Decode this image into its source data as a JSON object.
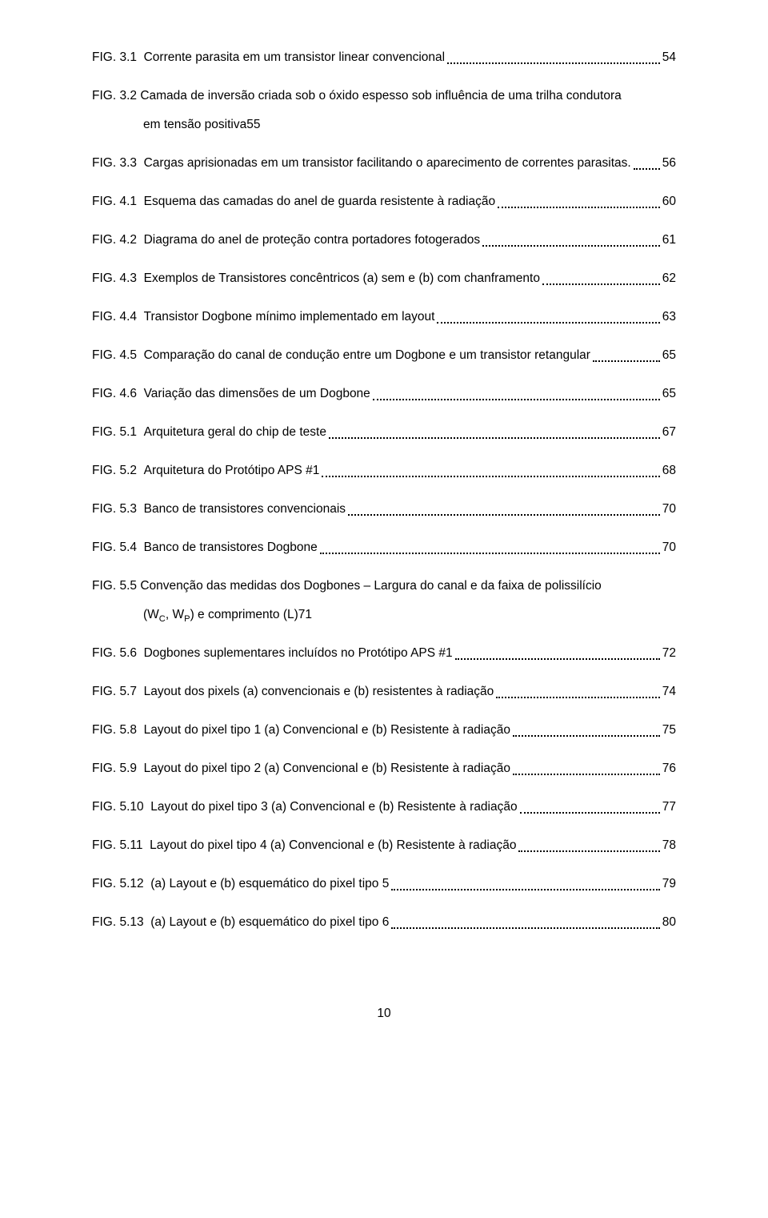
{
  "entries": [
    {
      "label": "FIG. 3.1",
      "title": "Corrente parasita em um transistor linear convencional",
      "page": "54",
      "multi": false
    },
    {
      "label": "FIG. 3.2",
      "titleTop": "Camada de inversão criada sob o óxido espesso sob influência de uma trilha condutora",
      "titleBottom": "em tensão positiva",
      "page": "55",
      "multi": true
    },
    {
      "label": "FIG. 3.3",
      "title": "Cargas aprisionadas em um transistor facilitando o aparecimento de correntes parasitas.",
      "page": "56",
      "multi": false
    },
    {
      "label": "FIG. 4.1",
      "title": "Esquema das camadas do anel de guarda resistente à radiação",
      "page": "60",
      "multi": false
    },
    {
      "label": "FIG. 4.2",
      "title": "Diagrama do anel de proteção contra portadores fotogerados",
      "page": "61",
      "multi": false
    },
    {
      "label": "FIG. 4.3",
      "title": "Exemplos de Transistores concêntricos (a) sem e (b) com chanframento",
      "page": "62",
      "multi": false
    },
    {
      "label": "FIG. 4.4",
      "title": "Transistor Dogbone mínimo implementado em layout",
      "page": "63",
      "multi": false
    },
    {
      "label": "FIG. 4.5",
      "title": "Comparação do canal de condução entre um Dogbone e um transistor retangular",
      "page": "65",
      "multi": false
    },
    {
      "label": "FIG. 4.6",
      "title": "Variação das dimensões de um Dogbone",
      "page": "65",
      "multi": false
    },
    {
      "label": "FIG. 5.1",
      "title": "Arquitetura geral do chip de teste",
      "page": "67",
      "multi": false
    },
    {
      "label": "FIG. 5.2",
      "title": "Arquitetura do Protótipo APS #1",
      "page": "68",
      "multi": false
    },
    {
      "label": "FIG. 5.3",
      "title": "Banco de transistores convencionais",
      "page": "70",
      "multi": false
    },
    {
      "label": "FIG. 5.4",
      "title": "Banco de transistores Dogbone",
      "page": "70",
      "multi": false
    },
    {
      "label": "FIG. 5.5",
      "titleTop": "Convenção das medidas dos Dogbones – Largura do canal e da faixa de polissilício",
      "titleBottomHtml": "(W<sub>C</sub>, W<sub>P</sub>) e comprimento (L)",
      "page": "71",
      "multi": true
    },
    {
      "label": "FIG. 5.6",
      "title": "Dogbones suplementares incluídos no Protótipo APS #1",
      "page": "72",
      "multi": false
    },
    {
      "label": "FIG. 5.7",
      "title": "Layout dos pixels (a) convencionais e (b) resistentes à radiação",
      "page": "74",
      "multi": false
    },
    {
      "label": "FIG. 5.8",
      "title": "Layout do pixel tipo 1 (a) Convencional e (b) Resistente à radiação",
      "page": "75",
      "multi": false
    },
    {
      "label": "FIG. 5.9",
      "title": "Layout do pixel tipo 2 (a) Convencional e (b) Resistente à radiação",
      "page": "76",
      "multi": false
    },
    {
      "label": "FIG. 5.10",
      "title": "Layout do pixel tipo 3 (a) Convencional e (b) Resistente à radiação",
      "page": "77",
      "multi": false
    },
    {
      "label": "FIG. 5.11",
      "title": "Layout do pixel tipo 4 (a) Convencional e (b) Resistente à radiação",
      "page": "78",
      "multi": false
    },
    {
      "label": "FIG. 5.12",
      "title": "(a) Layout e (b) esquemático do pixel tipo 5",
      "page": "79",
      "multi": false
    },
    {
      "label": "FIG. 5.13",
      "title": "(a) Layout e (b) esquemático do pixel tipo 6",
      "page": "80",
      "multi": false
    }
  ],
  "footerPage": "10"
}
